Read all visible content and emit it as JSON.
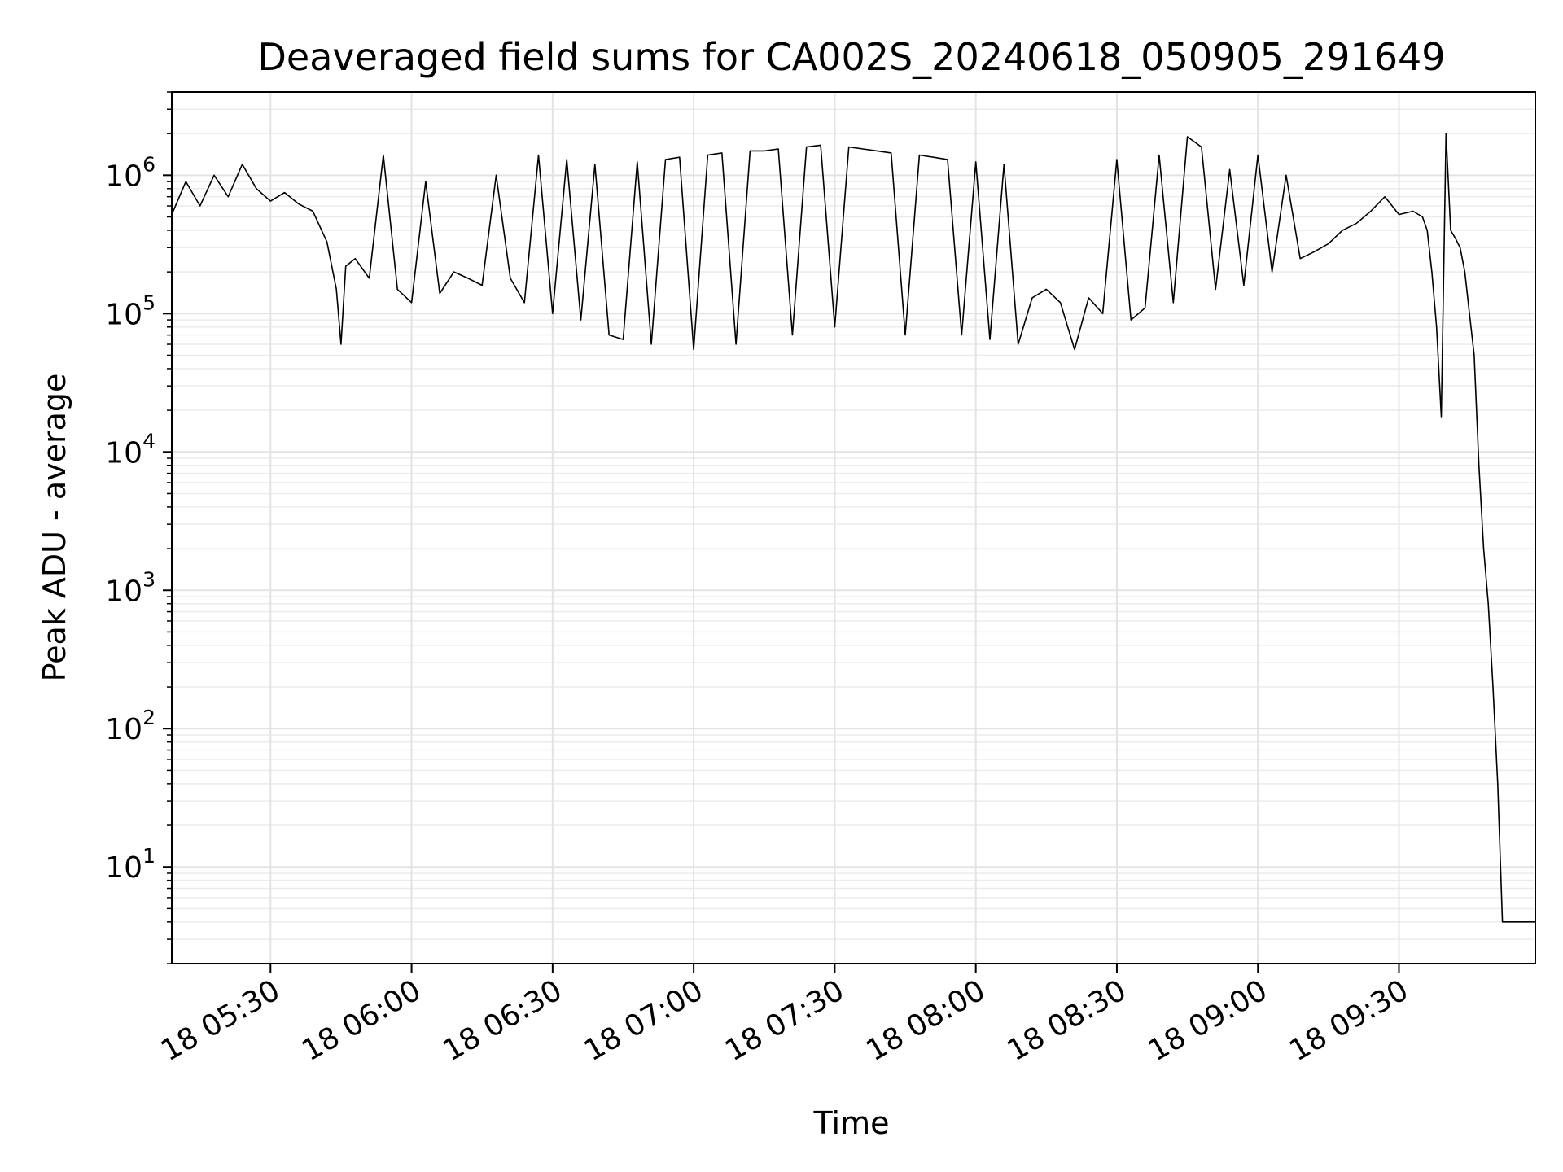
{
  "chart_data": {
    "type": "line",
    "title": "Deaveraged field sums for CA002S_20240618_050905_291649",
    "xlabel": "Time",
    "ylabel": "Peak ADU - average",
    "yscale": "log",
    "x_unit": "HH:MM on 18 June 2024",
    "xlim": [
      "05:09",
      "09:59"
    ],
    "ylim": [
      2,
      4000000
    ],
    "grid": true,
    "legend": "none",
    "line_color": "#000000",
    "xticks": [
      {
        "time": "05:30",
        "label": "18 05:30"
      },
      {
        "time": "06:00",
        "label": "18 06:00"
      },
      {
        "time": "06:30",
        "label": "18 06:30"
      },
      {
        "time": "07:00",
        "label": "18 07:00"
      },
      {
        "time": "07:30",
        "label": "18 07:30"
      },
      {
        "time": "08:00",
        "label": "18 08:00"
      },
      {
        "time": "08:30",
        "label": "18 08:30"
      },
      {
        "time": "09:00",
        "label": "18 09:00"
      },
      {
        "time": "09:30",
        "label": "18 09:30"
      }
    ],
    "yticks": [
      {
        "value": 10,
        "base": "10",
        "exp": "1"
      },
      {
        "value": 100,
        "base": "10",
        "exp": "2"
      },
      {
        "value": 1000,
        "base": "10",
        "exp": "3"
      },
      {
        "value": 10000,
        "base": "10",
        "exp": "4"
      },
      {
        "value": 100000,
        "base": "10",
        "exp": "5"
      },
      {
        "value": 1000000,
        "base": "10",
        "exp": "6"
      }
    ],
    "series": [
      {
        "x": [
          "05:09",
          "05:12",
          "05:15",
          "05:18",
          "05:21",
          "05:24",
          "05:27",
          "05:30",
          "05:33",
          "05:36",
          "05:39",
          "05:42",
          "05:44",
          "05:45",
          "05:46",
          "05:48",
          "05:51",
          "05:54",
          "05:57",
          "06:00",
          "06:03",
          "06:06",
          "06:09",
          "06:12",
          "06:15",
          "06:18",
          "06:21",
          "06:24",
          "06:27",
          "06:30",
          "06:33",
          "06:36",
          "06:39",
          "06:42",
          "06:45",
          "06:48",
          "06:51",
          "06:54",
          "06:57",
          "07:00",
          "07:03",
          "07:06",
          "07:09",
          "07:12",
          "07:15",
          "07:18",
          "07:21",
          "07:24",
          "07:27",
          "07:30",
          "07:33",
          "07:36",
          "07:39",
          "07:42",
          "07:45",
          "07:48",
          "07:51",
          "07:54",
          "07:57",
          "08:00",
          "08:03",
          "08:06",
          "08:09",
          "08:12",
          "08:15",
          "08:18",
          "08:21",
          "08:24",
          "08:27",
          "08:30",
          "08:33",
          "08:36",
          "08:39",
          "08:42",
          "08:45",
          "08:48",
          "08:51",
          "08:54",
          "08:57",
          "09:00",
          "09:03",
          "09:06",
          "09:09",
          "09:12",
          "09:15",
          "09:18",
          "09:21",
          "09:24",
          "09:27",
          "09:30",
          "09:33",
          "09:35",
          "09:36",
          "09:37",
          "09:38",
          "09:39",
          "09:40",
          "09:41",
          "09:42",
          "09:43",
          "09:44",
          "09:45",
          "09:46",
          "09:47",
          "09:48",
          "09:49",
          "09:50",
          "09:51",
          "09:52",
          "09:53",
          "09:55",
          "09:57",
          "09:59"
        ],
        "y": [
          520000,
          900000,
          600000,
          1000000,
          700000,
          1200000,
          800000,
          650000,
          750000,
          620000,
          550000,
          330000,
          150000,
          60000,
          220000,
          250000,
          180000,
          1400000,
          150000,
          120000,
          900000,
          140000,
          200000,
          180000,
          160000,
          1000000,
          180000,
          120000,
          1400000,
          100000,
          1300000,
          90000,
          1200000,
          70000,
          65000,
          1250000,
          60000,
          1300000,
          1350000,
          55000,
          1400000,
          1450000,
          60000,
          1500000,
          1500000,
          1550000,
          70000,
          1600000,
          1650000,
          80000,
          1600000,
          1550000,
          1500000,
          1450000,
          70000,
          1400000,
          1350000,
          1300000,
          70000,
          1250000,
          65000,
          1200000,
          60000,
          130000,
          150000,
          120000,
          55000,
          130000,
          100000,
          1300000,
          90000,
          110000,
          1400000,
          120000,
          1900000,
          1600000,
          150000,
          1100000,
          160000,
          1400000,
          200000,
          1000000,
          250000,
          280000,
          320000,
          400000,
          450000,
          550000,
          700000,
          520000,
          550000,
          500000,
          400000,
          200000,
          80000,
          18000,
          2000000,
          400000,
          350000,
          300000,
          200000,
          100000,
          50000,
          8000,
          2000,
          800,
          200,
          40,
          4,
          4,
          4,
          4,
          4
        ]
      }
    ]
  }
}
